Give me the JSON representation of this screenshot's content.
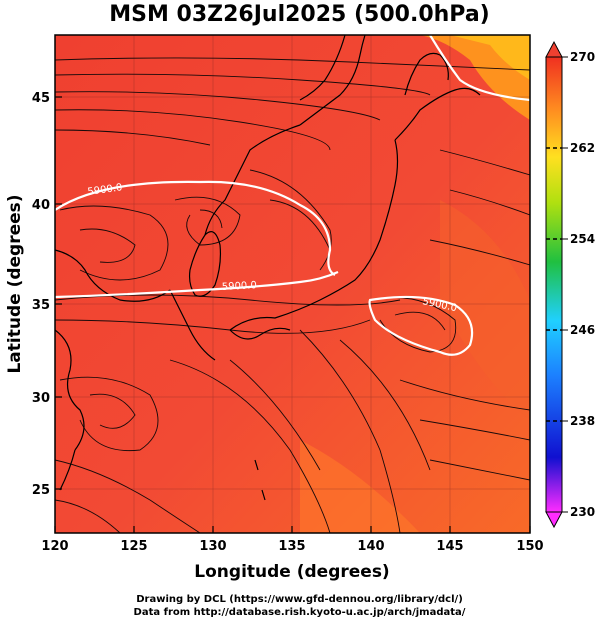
{
  "title": "MSM 03Z26Jul2025 (500.0hPa)",
  "axes": {
    "xlabel": "Longitude (degrees)",
    "ylabel": "Latitude  (degrees)",
    "xticks": [
      "120",
      "125",
      "130",
      "135",
      "140",
      "145",
      "150"
    ],
    "yticks": [
      "25",
      "30",
      "35",
      "40",
      "45"
    ]
  },
  "colorbar": {
    "min": 230,
    "max": 270,
    "labels": [
      "270",
      "262",
      "254",
      "246",
      "238",
      "230"
    ]
  },
  "contours": [
    {
      "label": "5900.0"
    },
    {
      "label": "5900.0"
    },
    {
      "label": "5900.0"
    }
  ],
  "colors": {
    "background_field": "#f04a3a",
    "warm_field": "#ff8a20",
    "contour_line": "#ffffff",
    "coastline": "#000000"
  },
  "credits": {
    "line1": "Drawing by DCL (https://www.gfd-dennou.org/library/dcl/)",
    "line2": "Data from http://database.rish.kyoto-u.ac.jp/arch/jmadata/"
  }
}
